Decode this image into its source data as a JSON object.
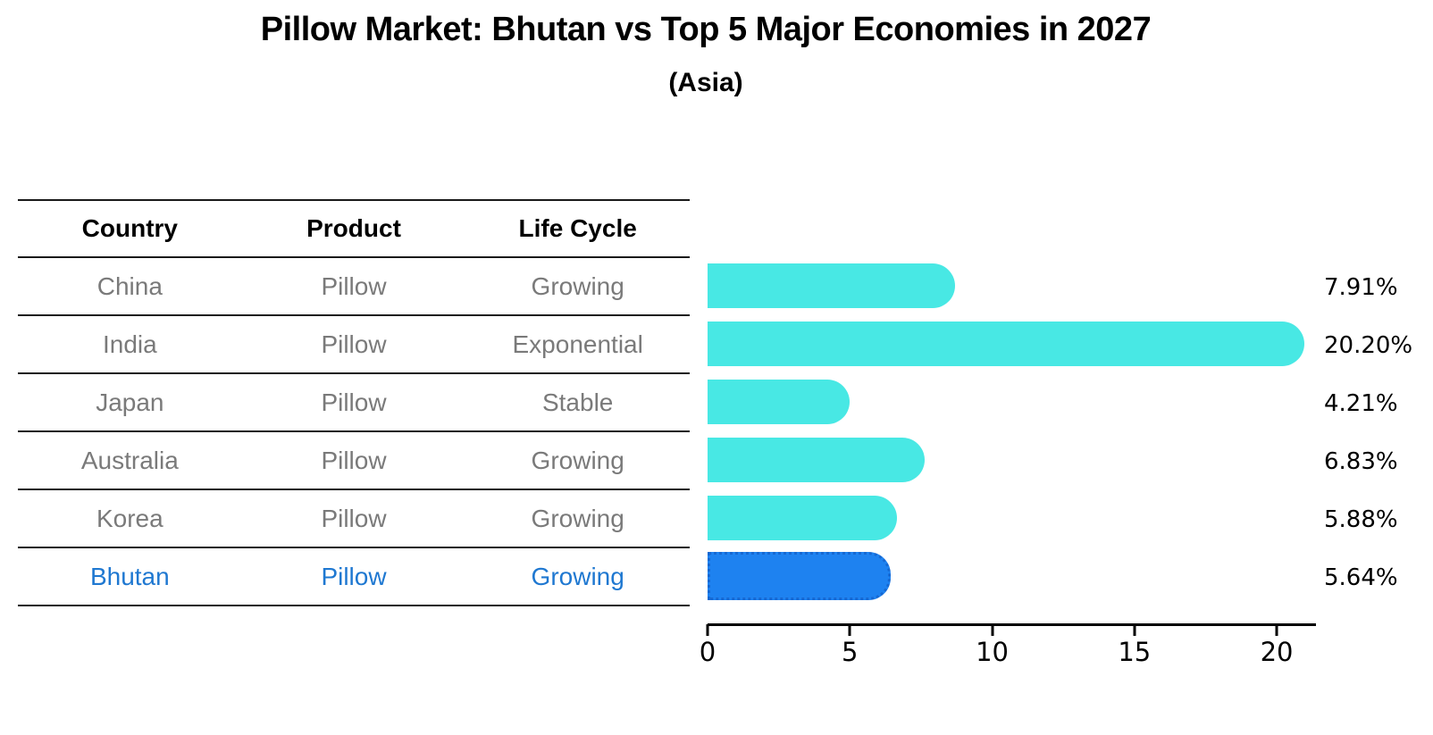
{
  "title": "Pillow Market: Bhutan vs Top 5 Major Economies in 2027",
  "subtitle": "(Asia)",
  "table": {
    "headers": [
      "Country",
      "Product",
      "Life Cycle"
    ],
    "rows": [
      {
        "country": "China",
        "product": "Pillow",
        "life_cycle": "Growing",
        "highlighted": false
      },
      {
        "country": "India",
        "product": "Pillow",
        "life_cycle": "Exponential",
        "highlighted": false
      },
      {
        "country": "Japan",
        "product": "Pillow",
        "life_cycle": "Stable",
        "highlighted": false
      },
      {
        "country": "Australia",
        "product": "Pillow",
        "life_cycle": "Growing",
        "highlighted": false
      },
      {
        "country": "Korea",
        "product": "Pillow",
        "life_cycle": "Growing",
        "highlighted": false
      },
      {
        "country": "Bhutan",
        "product": "Pillow",
        "life_cycle": "Growing",
        "highlighted": true
      }
    ]
  },
  "chart_data": {
    "type": "bar",
    "orientation": "horizontal",
    "title": "Pillow Market: Bhutan vs Top 5 Major Economies in 2027 (Asia)",
    "categories": [
      "China",
      "India",
      "Japan",
      "Australia",
      "Korea",
      "Bhutan"
    ],
    "values": [
      7.91,
      20.2,
      4.21,
      6.83,
      5.88,
      5.64
    ],
    "value_labels": [
      "7.91%",
      "20.20%",
      "4.21%",
      "6.83%",
      "5.88%",
      "5.64%"
    ],
    "xlabel": "",
    "ylabel": "",
    "xlim": [
      0,
      21.38
    ],
    "x_ticks": [
      0,
      5,
      10,
      15,
      20
    ],
    "grid": false,
    "legend": false,
    "highlight_category": "Bhutan",
    "colors": {
      "default_bar": "#48e8e4",
      "highlight_bar": "#1e82f0",
      "highlight_border": "#1668d2",
      "row_text": "#7a7a7a",
      "highlight_text": "#1f78d1",
      "axis": "#000000"
    }
  }
}
